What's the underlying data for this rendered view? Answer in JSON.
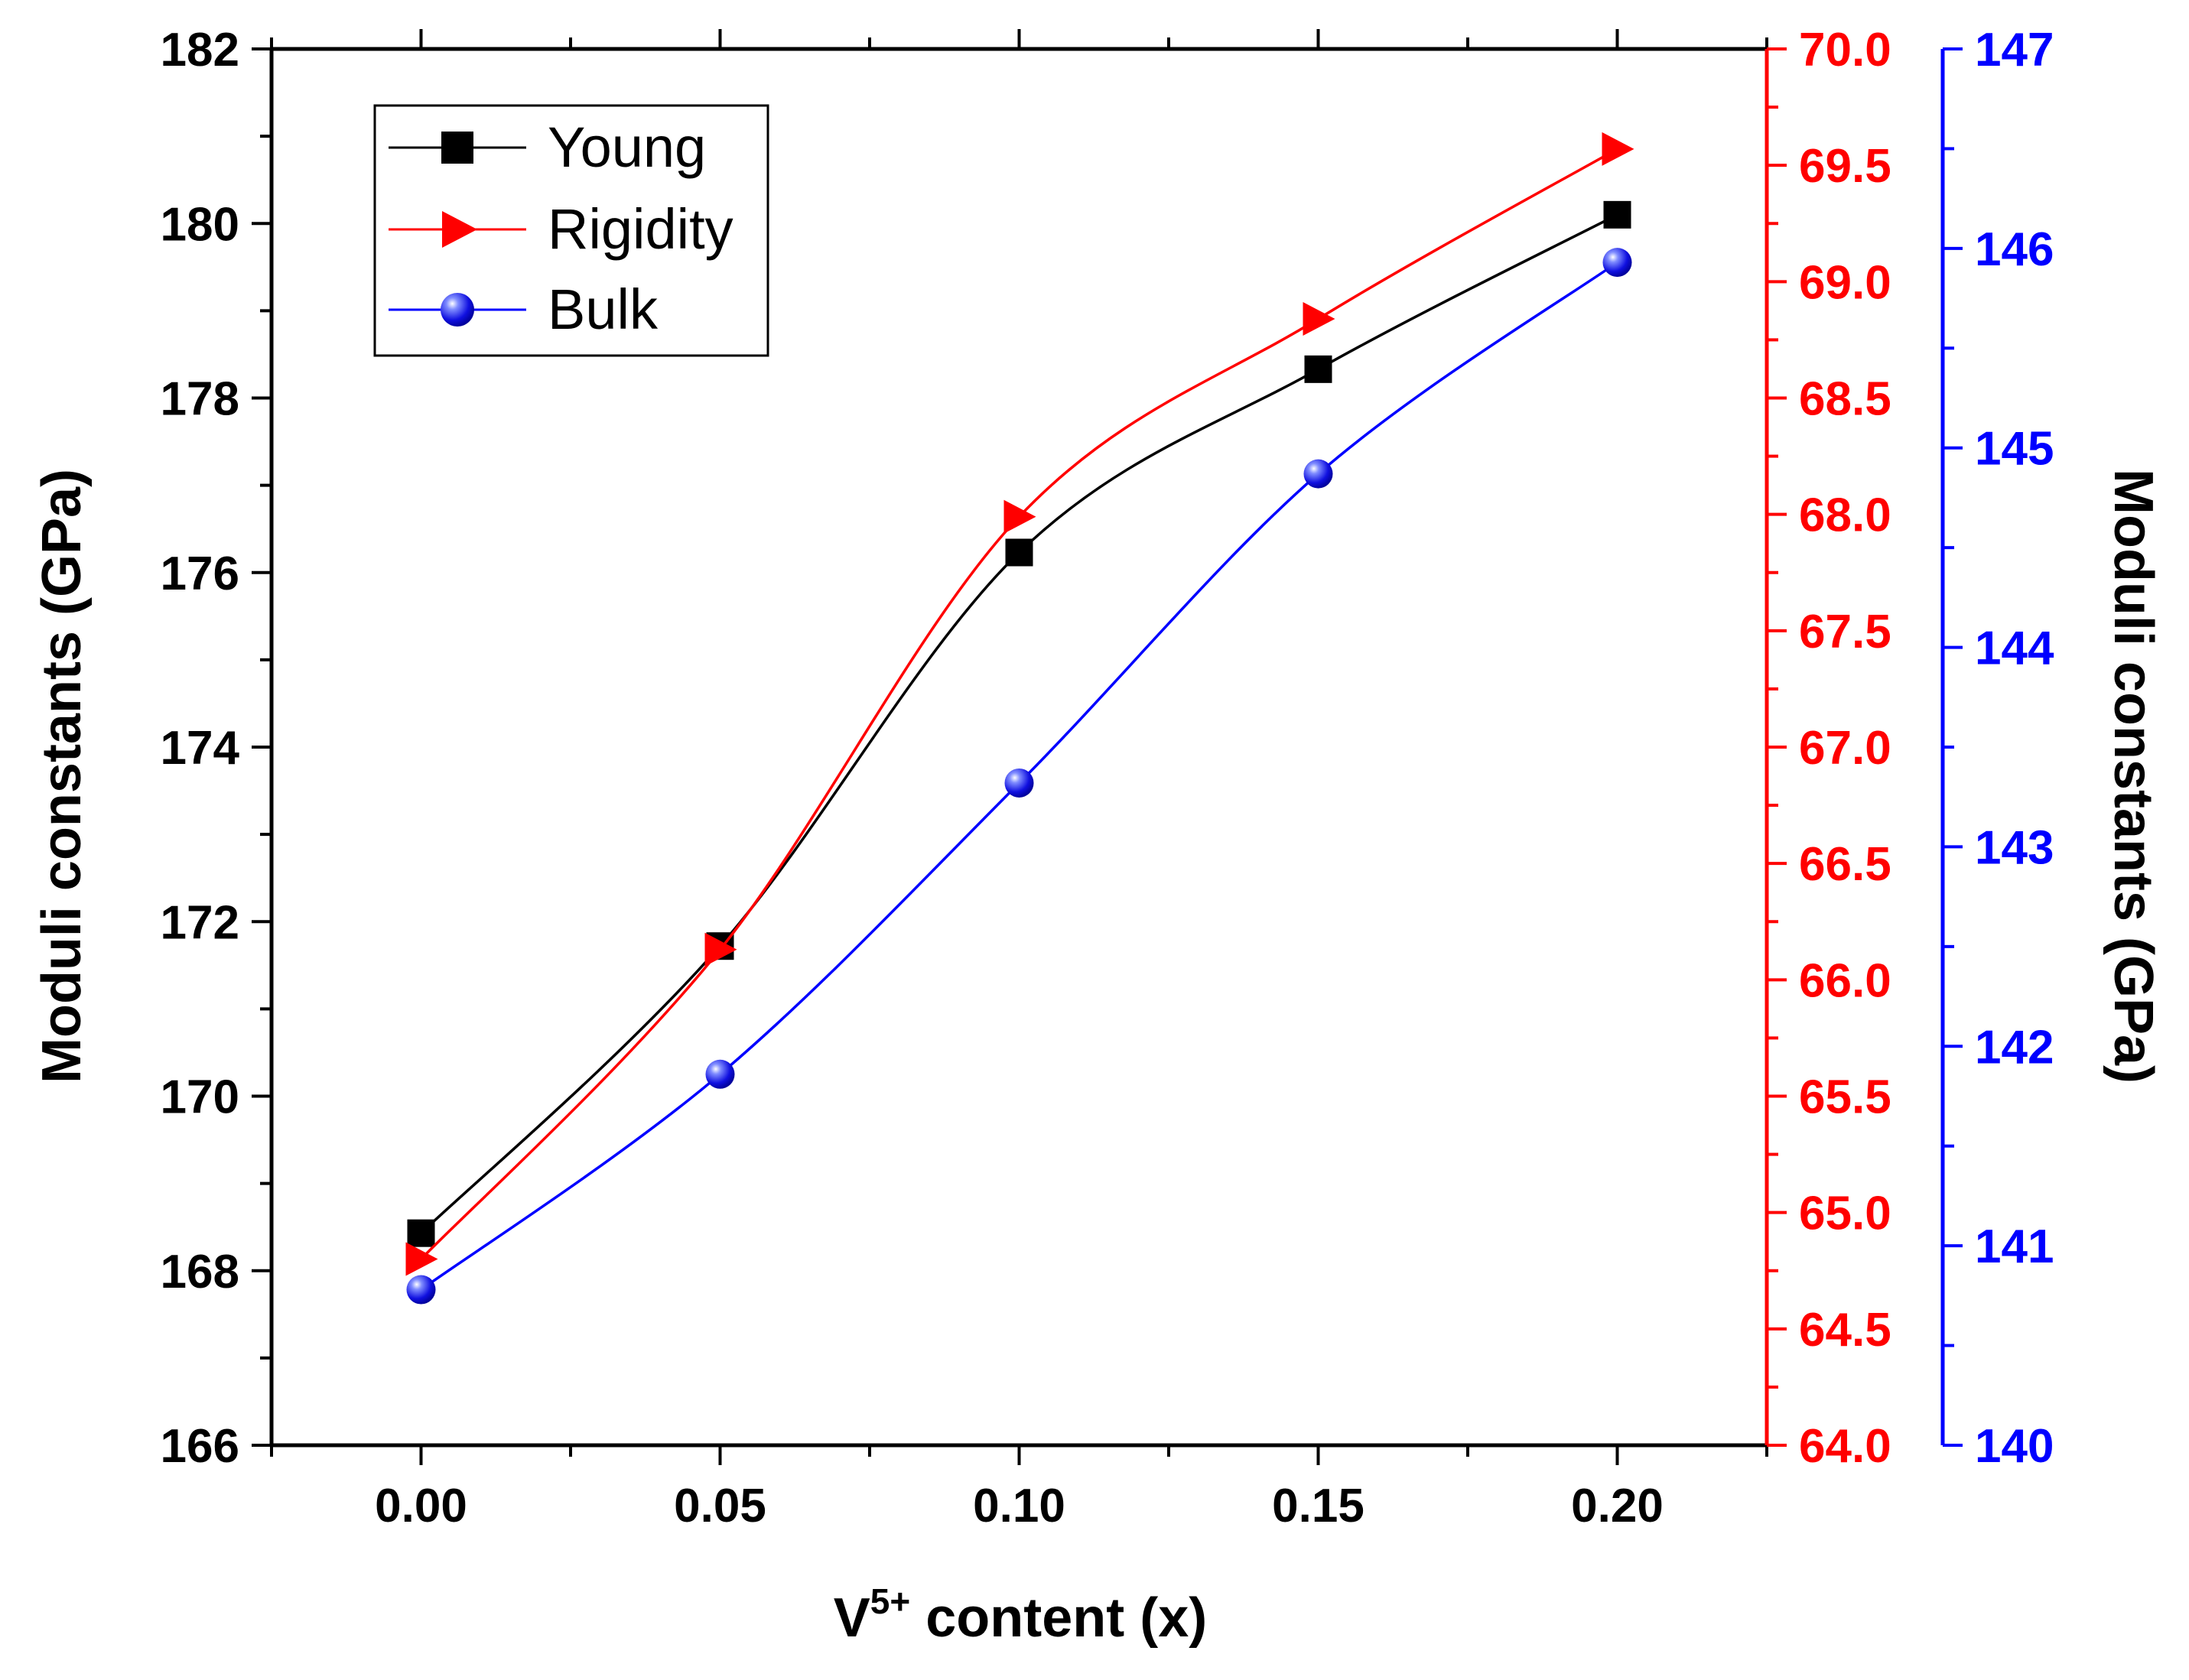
{
  "chart_data": {
    "type": "line",
    "title": "",
    "xlabel": {
      "base": "V",
      "sup": "5+",
      "rest": " content (x)"
    },
    "x": [
      0.0,
      0.05,
      0.1,
      0.15,
      0.2
    ],
    "xlim": [
      -0.025,
      0.225
    ],
    "xticks": [
      0.0,
      0.05,
      0.1,
      0.15,
      0.2
    ],
    "xtick_labels": [
      "0.00",
      "0.05",
      "0.10",
      "0.15",
      "0.20"
    ],
    "axes": {
      "left": {
        "label": "Moduli constants (GPa)",
        "color": "#000000",
        "ylim": [
          166,
          182
        ],
        "ticks": [
          166,
          168,
          170,
          172,
          174,
          176,
          178,
          180,
          182
        ],
        "tick_labels": [
          "166",
          "168",
          "170",
          "172",
          "174",
          "176",
          "178",
          "180",
          "182"
        ]
      },
      "right_red": {
        "label": "",
        "color": "#ff0000",
        "ylim": [
          64.0,
          70.0
        ],
        "ticks": [
          64.0,
          64.5,
          65.0,
          65.5,
          66.0,
          66.5,
          67.0,
          67.5,
          68.0,
          68.5,
          69.0,
          69.5,
          70.0
        ],
        "tick_labels": [
          "64.0",
          "64.5",
          "65.0",
          "65.5",
          "66.0",
          "66.5",
          "67.0",
          "67.5",
          "68.0",
          "68.5",
          "69.0",
          "69.5",
          "70.0"
        ]
      },
      "right_blue": {
        "label": "Moduli constants (GPa)",
        "color": "#0000ff",
        "ylim": [
          140,
          147
        ],
        "ticks": [
          140,
          141,
          142,
          143,
          144,
          145,
          146,
          147
        ],
        "tick_labels": [
          "140",
          "141",
          "142",
          "143",
          "144",
          "145",
          "146",
          "147"
        ]
      }
    },
    "series": [
      {
        "name": "Young",
        "axis": "left",
        "color": "#000000",
        "marker": "square",
        "values": [
          168.43,
          171.72,
          176.23,
          178.33,
          180.1
        ]
      },
      {
        "name": "Rigidity",
        "axis": "right_red",
        "color": "#ff0000",
        "marker": "triangle-right",
        "values": [
          64.8,
          66.13,
          67.99,
          68.84,
          69.57
        ]
      },
      {
        "name": "Bulk",
        "axis": "right_blue",
        "color": "#0000ff",
        "marker": "sphere",
        "values": [
          140.78,
          141.86,
          143.32,
          144.87,
          145.93
        ]
      }
    ],
    "legend": {
      "position": "top-left",
      "entries": [
        "Young",
        "Rigidity",
        "Bulk"
      ]
    }
  }
}
